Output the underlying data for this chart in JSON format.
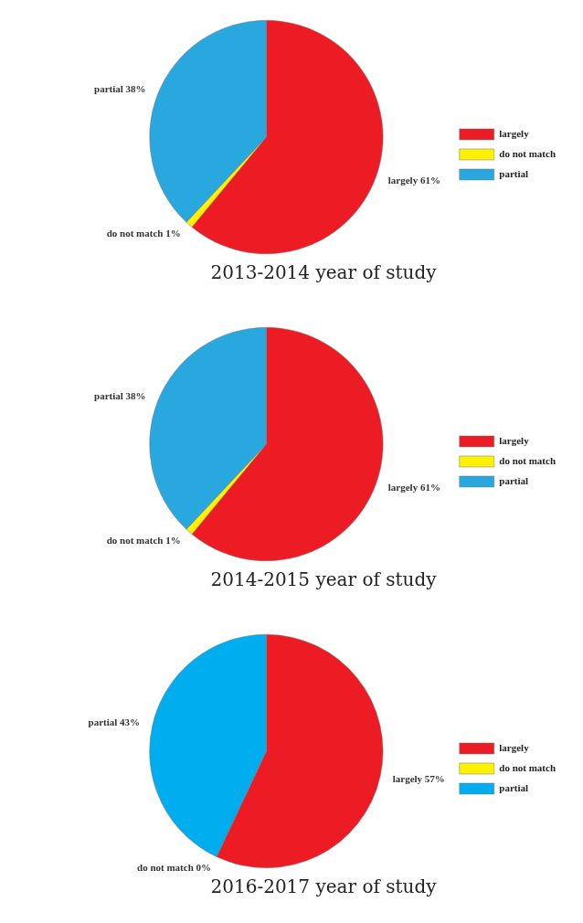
{
  "chart_data": [
    {
      "type": "pie",
      "title": "2013-2014 year of study",
      "categories": [
        "largely",
        "do not match",
        "partial"
      ],
      "values": [
        61,
        1,
        38
      ],
      "colors": [
        "#ed1c24",
        "#fff200",
        "#29a8e0"
      ],
      "value_labels": [
        "largely 61%",
        "do not match 1%",
        "partial 38%"
      ],
      "legend": "right"
    },
    {
      "type": "pie",
      "title": "2014-2015 year of study",
      "categories": [
        "largely",
        "do not match",
        "partial"
      ],
      "values": [
        61,
        1,
        38
      ],
      "colors": [
        "#ed1c24",
        "#fff200",
        "#29a8e0"
      ],
      "value_labels": [
        "largely 61%",
        "do not match 1%",
        "partial 38%"
      ],
      "legend": "right"
    },
    {
      "type": "pie",
      "title": "2016-2017 year of study",
      "categories": [
        "largely",
        "do not match",
        "partial"
      ],
      "values": [
        57,
        0,
        43
      ],
      "colors": [
        "#ed1c24",
        "#fff200",
        "#00aeef"
      ],
      "value_labels": [
        "largely 57%",
        "do not match 0%",
        "partial 43%"
      ],
      "legend": "right"
    }
  ]
}
